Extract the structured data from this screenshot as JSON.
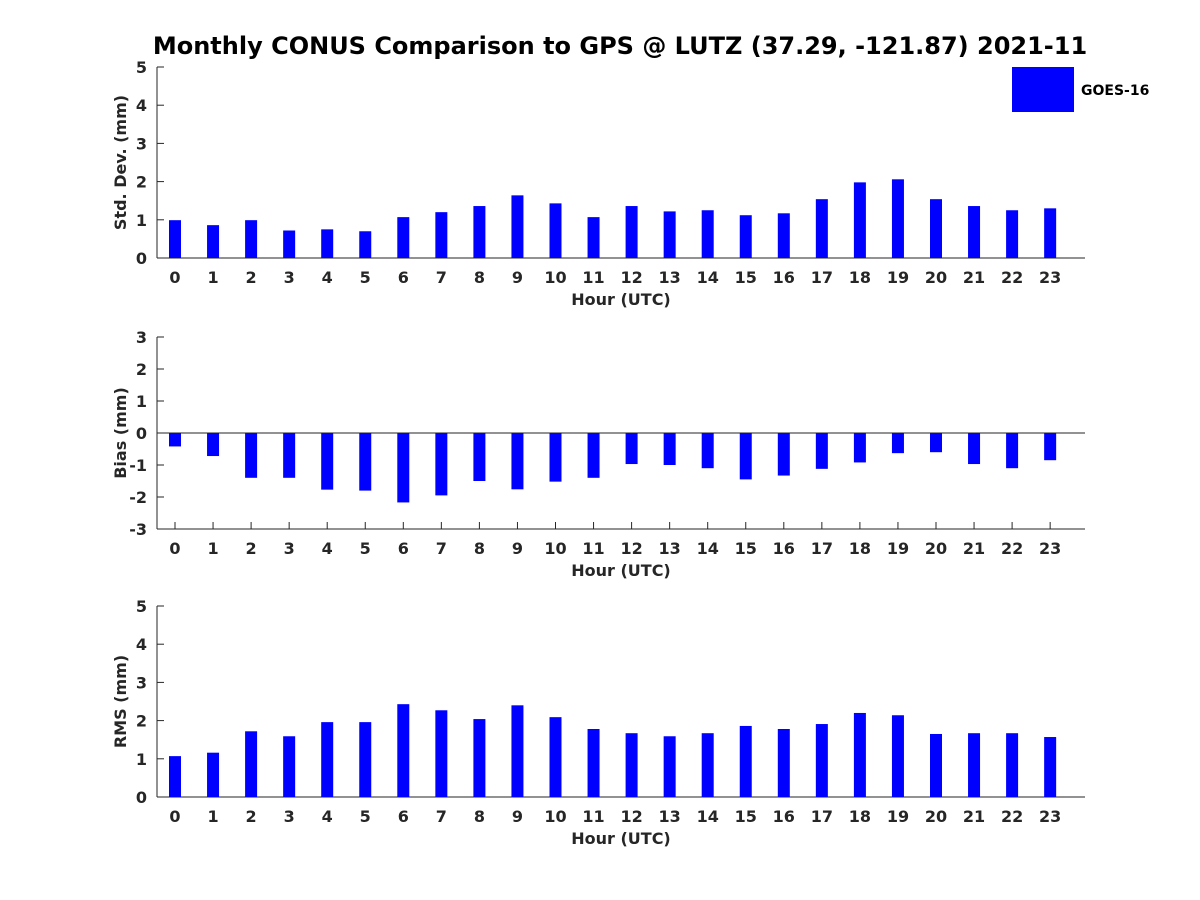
{
  "figure_title": "Monthly CONUS Comparison to GPS @ LUTZ (37.29, -121.87) 2021-11",
  "bar_color": "#0000ff",
  "legend": {
    "label": "GOES-16",
    "placement": "top-right"
  },
  "chart_data": [
    {
      "type": "bar",
      "title": "Monthly CONUS Comparison to GPS @ LUTZ (37.29, -121.87) 2021-11",
      "xlabel": "Hour (UTC)",
      "ylabel": "Std. Dev. (mm)",
      "ylim": [
        0,
        5
      ],
      "yticks": [
        0,
        1,
        2,
        3,
        4,
        5
      ],
      "categories": [
        "0",
        "1",
        "2",
        "3",
        "4",
        "5",
        "6",
        "7",
        "8",
        "9",
        "10",
        "11",
        "12",
        "13",
        "14",
        "15",
        "16",
        "17",
        "18",
        "19",
        "20",
        "21",
        "22",
        "23"
      ],
      "series": [
        {
          "name": "GOES-16",
          "values": [
            0.99,
            0.86,
            0.99,
            0.72,
            0.75,
            0.7,
            1.07,
            1.2,
            1.36,
            1.64,
            1.43,
            1.07,
            1.36,
            1.22,
            1.25,
            1.12,
            1.17,
            1.54,
            1.98,
            2.06,
            1.54,
            1.36,
            1.25,
            1.3
          ]
        }
      ]
    },
    {
      "type": "bar",
      "xlabel": "Hour (UTC)",
      "ylabel": "Bias (mm)",
      "ylim": [
        -3,
        3
      ],
      "yticks": [
        -3,
        -2,
        -1,
        0,
        1,
        2,
        3
      ],
      "categories": [
        "0",
        "1",
        "2",
        "3",
        "4",
        "5",
        "6",
        "7",
        "8",
        "9",
        "10",
        "11",
        "12",
        "13",
        "14",
        "15",
        "16",
        "17",
        "18",
        "19",
        "20",
        "21",
        "22",
        "23"
      ],
      "series": [
        {
          "name": "GOES-16",
          "values": [
            -0.42,
            -0.72,
            -1.4,
            -1.4,
            -1.77,
            -1.8,
            -2.17,
            -1.95,
            -1.5,
            -1.76,
            -1.52,
            -1.4,
            -0.97,
            -1.0,
            -1.1,
            -1.45,
            -1.33,
            -1.12,
            -0.92,
            -0.63,
            -0.6,
            -0.97,
            -1.1,
            -0.85
          ]
        }
      ]
    },
    {
      "type": "bar",
      "xlabel": "Hour (UTC)",
      "ylabel": "RMS (mm)",
      "ylim": [
        0,
        5
      ],
      "yticks": [
        0,
        1,
        2,
        3,
        4,
        5
      ],
      "categories": [
        "0",
        "1",
        "2",
        "3",
        "4",
        "5",
        "6",
        "7",
        "8",
        "9",
        "10",
        "11",
        "12",
        "13",
        "14",
        "15",
        "16",
        "17",
        "18",
        "19",
        "20",
        "21",
        "22",
        "23"
      ],
      "series": [
        {
          "name": "GOES-16",
          "values": [
            1.07,
            1.16,
            1.72,
            1.59,
            1.96,
            1.96,
            2.43,
            2.27,
            2.04,
            2.4,
            2.09,
            1.78,
            1.67,
            1.59,
            1.67,
            1.86,
            1.78,
            1.91,
            2.2,
            2.14,
            1.65,
            1.67,
            1.67,
            1.57
          ]
        }
      ]
    }
  ]
}
